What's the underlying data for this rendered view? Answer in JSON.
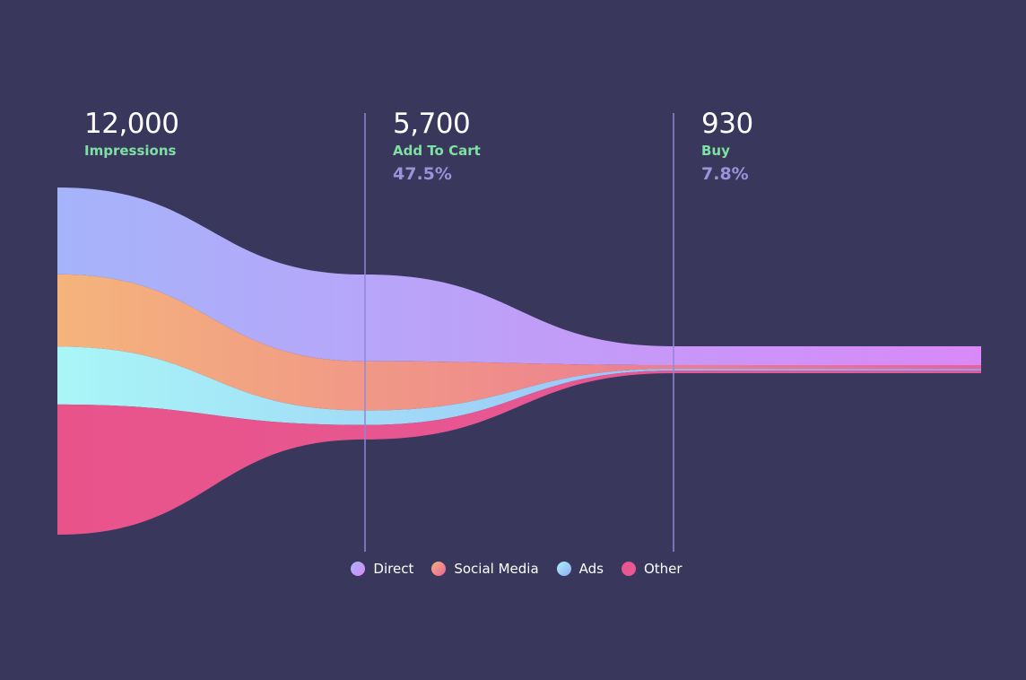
{
  "chart_data": {
    "type": "area",
    "stages": [
      {
        "count": "12,000",
        "label": "Impressions",
        "pct": ""
      },
      {
        "count": "5,700",
        "label": "Add To Cart",
        "pct": "47.5%"
      },
      {
        "count": "930",
        "label": "Buy",
        "pct": "7.8%"
      }
    ],
    "series": [
      {
        "name": "Direct",
        "values": [
          3000,
          3000,
          650
        ],
        "colors": [
          "#a5b4fa",
          "#d989f7"
        ]
      },
      {
        "name": "Social Media",
        "values": [
          2500,
          1700,
          130
        ],
        "colors": [
          "#f5b47c",
          "#e8629b"
        ]
      },
      {
        "name": "Ads",
        "values": [
          2000,
          500,
          60
        ],
        "colors": [
          "#a9f6f7",
          "#94a8f8"
        ]
      },
      {
        "name": "Other",
        "values": [
          4500,
          500,
          90
        ],
        "colors": [
          "#e8548a",
          "#e65a9a"
        ]
      }
    ],
    "legend_position": "bottom-center"
  },
  "style": {
    "background": "#39375c",
    "divider_color": "#8f87d6",
    "label_color": "#7ee0a3",
    "pct_color": "#9b92d8"
  }
}
